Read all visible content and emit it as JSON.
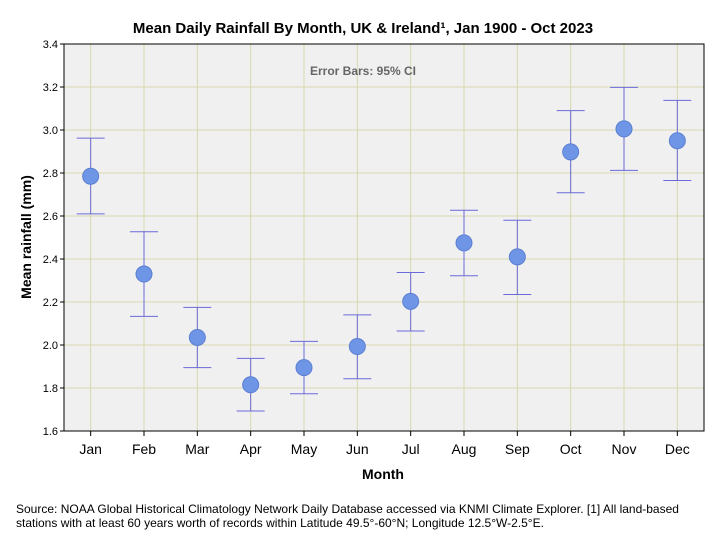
{
  "chart_data": {
    "type": "scatter",
    "title": "Mean Daily Rainfall By Month, UK & Ireland¹, Jan 1900 - Oct 2023",
    "annotation": "Error Bars: 95% CI",
    "xlabel": "Month",
    "ylabel": "Mean rainfall (mm)",
    "categories": [
      "Jan",
      "Feb",
      "Mar",
      "Apr",
      "May",
      "Jun",
      "Jul",
      "Aug",
      "Sep",
      "Oct",
      "Nov",
      "Dec"
    ],
    "values": [
      2.785,
      2.33,
      2.035,
      1.815,
      1.895,
      1.993,
      2.203,
      2.475,
      2.41,
      2.898,
      3.005,
      2.95
    ],
    "ci_low": [
      2.61,
      2.133,
      1.895,
      1.693,
      1.773,
      1.843,
      2.065,
      2.322,
      2.235,
      2.708,
      2.812,
      2.765
    ],
    "ci_high": [
      2.962,
      2.527,
      2.175,
      1.938,
      2.017,
      2.14,
      2.337,
      2.627,
      2.58,
      3.09,
      3.198,
      3.138
    ],
    "ylim": [
      1.6,
      3.4
    ],
    "yticks": [
      "1.6",
      "1.8",
      "2.0",
      "2.2",
      "2.4",
      "2.6",
      "2.8",
      "3.0",
      "3.2",
      "3.4"
    ],
    "grid": true,
    "colors": {
      "marker_fill": "#6f96e6",
      "marker_stroke": "#5b7fd0",
      "error_bar": "#6a6ad8",
      "grid": "#d8d8b0",
      "plot_bg": "#f0f0f0"
    }
  },
  "source_text": "Source: NOAA Global Historical Climatology Network Daily Database accessed via KNMI Climate Explorer. [1] All land-based stations with at least 60 years worth of records within Latitude 49.5°-60°N; Longitude 12.5°W-2.5°E."
}
